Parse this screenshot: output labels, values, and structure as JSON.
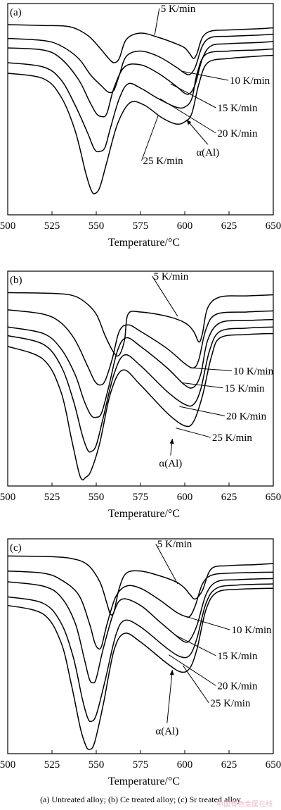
{
  "caption": "(a) Untreated alloy; (b) Ce  treated alloy; (c) Sr treated alloy",
  "watermark": "中国有色金属在线",
  "chart_data": [
    {
      "type": "line",
      "panel_label": "(a)",
      "xlabel": "Temperature/°C",
      "ylabel": "",
      "xlim": [
        500,
        650
      ],
      "xticks": [
        500,
        525,
        550,
        575,
        600,
        625,
        650
      ],
      "yticks_shown": false,
      "legend": "none",
      "series": [
        {
          "name": "5 K/min",
          "x": [
            500,
            520,
            535,
            545,
            552,
            557,
            560,
            563,
            567,
            575,
            585,
            595,
            600,
            603,
            605,
            607,
            610,
            615,
            625,
            640,
            650
          ],
          "y": [
            0.9,
            0.896,
            0.89,
            0.85,
            0.79,
            0.74,
            0.72,
            0.74,
            0.83,
            0.86,
            0.84,
            0.81,
            0.79,
            0.76,
            0.74,
            0.765,
            0.84,
            0.87,
            0.875,
            0.88,
            0.885
          ]
        },
        {
          "name": "10 K/min",
          "x": [
            500,
            520,
            530,
            540,
            547,
            553,
            557,
            560,
            563,
            567,
            575,
            585,
            595,
            600,
            603,
            606,
            610,
            615,
            625,
            640,
            650
          ],
          "y": [
            0.835,
            0.825,
            0.8,
            0.74,
            0.66,
            0.61,
            0.58,
            0.59,
            0.66,
            0.75,
            0.775,
            0.75,
            0.7,
            0.67,
            0.665,
            0.7,
            0.8,
            0.84,
            0.845,
            0.85,
            0.855
          ]
        },
        {
          "name": "15 K/min",
          "x": [
            500,
            520,
            530,
            540,
            546,
            550,
            553,
            556,
            560,
            566,
            575,
            585,
            595,
            600,
            603,
            606,
            610,
            615,
            625,
            640,
            650
          ],
          "y": [
            0.79,
            0.78,
            0.74,
            0.64,
            0.54,
            0.48,
            0.465,
            0.48,
            0.6,
            0.7,
            0.71,
            0.67,
            0.61,
            0.575,
            0.575,
            0.62,
            0.74,
            0.8,
            0.81,
            0.815,
            0.82
          ]
        },
        {
          "name": "20 K/min",
          "x": [
            500,
            520,
            530,
            538,
            545,
            549,
            552,
            555,
            558,
            563,
            568,
            575,
            585,
            595,
            600,
            604,
            607,
            612,
            625,
            640,
            650
          ],
          "y": [
            0.72,
            0.7,
            0.64,
            0.52,
            0.39,
            0.31,
            0.3,
            0.32,
            0.41,
            0.55,
            0.62,
            0.6,
            0.55,
            0.51,
            0.51,
            0.55,
            0.67,
            0.76,
            0.775,
            0.78,
            0.785
          ]
        },
        {
          "name": "25 K/min",
          "x": [
            500,
            520,
            530,
            538,
            544,
            547,
            549,
            552,
            556,
            562,
            569,
            577,
            587,
            595,
            600,
            604,
            608,
            613,
            625,
            640,
            650
          ],
          "y": [
            0.67,
            0.645,
            0.56,
            0.4,
            0.2,
            0.12,
            0.1,
            0.13,
            0.25,
            0.43,
            0.53,
            0.52,
            0.46,
            0.43,
            0.44,
            0.48,
            0.62,
            0.72,
            0.74,
            0.75,
            0.755
          ]
        }
      ],
      "annotations": [
        {
          "text": "5 K/min",
          "x": 588,
          "y": 0.96,
          "target_x": 583,
          "target_y": 0.85
        },
        {
          "text": "10 K/min",
          "x": 627,
          "y": 0.62,
          "target_x": 598,
          "target_y": 0.68
        },
        {
          "text": "15 K/min",
          "x": 620,
          "y": 0.49,
          "target_x": 592,
          "target_y": 0.62
        },
        {
          "text": "20 K/min",
          "x": 620,
          "y": 0.37,
          "target_x": 586,
          "target_y": 0.55
        },
        {
          "text": "25 K/min",
          "x": 578,
          "y": 0.24,
          "target_x": 585,
          "target_y": 0.47
        },
        {
          "text": "α(Al)",
          "x": 613,
          "y": 0.28,
          "target_x": 601,
          "target_y": 0.45
        }
      ]
    },
    {
      "type": "line",
      "panel_label": "(b)",
      "xlabel": "Temperature/°C",
      "ylabel": "",
      "xlim": [
        500,
        650
      ],
      "xticks": [
        500,
        525,
        550,
        575,
        600,
        625,
        650
      ],
      "yticks_shown": false,
      "legend": "none",
      "series": [
        {
          "name": "5 K/min",
          "x": [
            500,
            520,
            535,
            543,
            550,
            555,
            560,
            563,
            566,
            568,
            575,
            590,
            600,
            605,
            608,
            610,
            613,
            620,
            635,
            650
          ],
          "y": [
            0.9,
            0.898,
            0.89,
            0.86,
            0.8,
            0.7,
            0.62,
            0.61,
            0.68,
            0.8,
            0.81,
            0.79,
            0.76,
            0.72,
            0.67,
            0.71,
            0.83,
            0.88,
            0.885,
            0.89
          ]
        },
        {
          "name": "10 K/min",
          "x": [
            500,
            520,
            530,
            538,
            545,
            549,
            552,
            555,
            559,
            563,
            568,
            575,
            590,
            600,
            605,
            608,
            612,
            618,
            635,
            650
          ],
          "y": [
            0.82,
            0.8,
            0.76,
            0.68,
            0.56,
            0.49,
            0.47,
            0.49,
            0.59,
            0.72,
            0.75,
            0.72,
            0.64,
            0.57,
            0.55,
            0.59,
            0.73,
            0.8,
            0.81,
            0.815
          ]
        },
        {
          "name": "15 K/min",
          "x": [
            500,
            520,
            530,
            538,
            543,
            547,
            550,
            553,
            557,
            562,
            567,
            575,
            590,
            600,
            605,
            609,
            613,
            620,
            635,
            650
          ],
          "y": [
            0.74,
            0.71,
            0.64,
            0.52,
            0.4,
            0.33,
            0.32,
            0.34,
            0.46,
            0.63,
            0.69,
            0.65,
            0.55,
            0.47,
            0.46,
            0.52,
            0.68,
            0.76,
            0.77,
            0.775
          ]
        },
        {
          "name": "20 K/min",
          "x": [
            500,
            520,
            530,
            537,
            542,
            545,
            547,
            550,
            554,
            560,
            566,
            575,
            590,
            600,
            605,
            609,
            614,
            620,
            635,
            650
          ],
          "y": [
            0.7,
            0.66,
            0.56,
            0.4,
            0.24,
            0.17,
            0.16,
            0.19,
            0.32,
            0.52,
            0.61,
            0.56,
            0.44,
            0.38,
            0.38,
            0.45,
            0.63,
            0.72,
            0.735,
            0.74
          ]
        },
        {
          "name": "25 K/min",
          "x": [
            500,
            520,
            530,
            536,
            540,
            542,
            544,
            547,
            552,
            558,
            565,
            575,
            590,
            600,
            605,
            610,
            615,
            620,
            635,
            650
          ],
          "y": [
            0.65,
            0.59,
            0.44,
            0.22,
            0.07,
            0.03,
            0.04,
            0.07,
            0.2,
            0.43,
            0.54,
            0.47,
            0.34,
            0.28,
            0.3,
            0.42,
            0.6,
            0.69,
            0.705,
            0.71
          ]
        }
      ],
      "annotations": [
        {
          "text": "5 K/min",
          "x": 584,
          "y": 0.96,
          "target_x": 596,
          "target_y": 0.79
        },
        {
          "text": "10 K/min",
          "x": 629,
          "y": 0.52,
          "target_x": 603,
          "target_y": 0.55
        },
        {
          "text": "15 K/min",
          "x": 624,
          "y": 0.44,
          "target_x": 599,
          "target_y": 0.48
        },
        {
          "text": "20 K/min",
          "x": 625,
          "y": 0.31,
          "target_x": 597,
          "target_y": 0.37
        },
        {
          "text": "25 K/min",
          "x": 617,
          "y": 0.21,
          "target_x": 595,
          "target_y": 0.27
        },
        {
          "text": "α(Al)",
          "x": 592,
          "y": 0.09,
          "target_x": 593,
          "target_y": 0.22
        }
      ]
    },
    {
      "type": "line",
      "panel_label": "(c)",
      "xlabel": "Temperature/°C",
      "ylabel": "",
      "xlim": [
        500,
        650
      ],
      "xticks": [
        500,
        525,
        550,
        575,
        600,
        625,
        650
      ],
      "yticks_shown": false,
      "legend": "none",
      "series": [
        {
          "name": "5 K/min",
          "x": [
            500,
            520,
            535,
            545,
            552,
            556,
            558,
            560,
            563,
            567,
            575,
            585,
            595,
            600,
            603,
            606,
            610,
            615,
            625,
            640,
            650
          ],
          "y": [
            0.92,
            0.918,
            0.91,
            0.88,
            0.8,
            0.7,
            0.65,
            0.66,
            0.77,
            0.84,
            0.85,
            0.83,
            0.8,
            0.77,
            0.74,
            0.72,
            0.76,
            0.86,
            0.875,
            0.88,
            0.885
          ]
        },
        {
          "name": "10 K/min",
          "x": [
            500,
            520,
            530,
            540,
            546,
            549,
            551,
            553,
            556,
            561,
            567,
            575,
            585,
            595,
            600,
            603,
            606,
            610,
            615,
            625,
            650
          ],
          "y": [
            0.85,
            0.84,
            0.81,
            0.74,
            0.61,
            0.52,
            0.49,
            0.5,
            0.6,
            0.73,
            0.78,
            0.77,
            0.72,
            0.66,
            0.64,
            0.64,
            0.69,
            0.79,
            0.83,
            0.84,
            0.845
          ]
        },
        {
          "name": "15 K/min",
          "x": [
            500,
            520,
            530,
            538,
            543,
            546,
            548,
            550,
            554,
            560,
            565,
            575,
            585,
            595,
            600,
            603,
            607,
            612,
            618,
            630,
            650
          ],
          "y": [
            0.8,
            0.78,
            0.73,
            0.61,
            0.45,
            0.35,
            0.33,
            0.35,
            0.49,
            0.66,
            0.72,
            0.69,
            0.62,
            0.55,
            0.52,
            0.53,
            0.6,
            0.74,
            0.8,
            0.81,
            0.815
          ]
        },
        {
          "name": "20 K/min",
          "x": [
            500,
            520,
            530,
            537,
            542,
            545,
            547,
            550,
            555,
            561,
            566,
            575,
            590,
            598,
            603,
            607,
            612,
            618,
            630,
            650
          ],
          "y": [
            0.73,
            0.7,
            0.61,
            0.45,
            0.26,
            0.17,
            0.15,
            0.18,
            0.34,
            0.55,
            0.62,
            0.59,
            0.49,
            0.45,
            0.46,
            0.54,
            0.7,
            0.77,
            0.785,
            0.79
          ]
        },
        {
          "name": "25 K/min",
          "x": [
            500,
            520,
            530,
            536,
            541,
            544,
            546,
            549,
            554,
            560,
            566,
            575,
            590,
            598,
            603,
            607,
            612,
            618,
            630,
            650
          ],
          "y": [
            0.69,
            0.65,
            0.52,
            0.32,
            0.12,
            0.04,
            0.02,
            0.05,
            0.23,
            0.48,
            0.56,
            0.52,
            0.42,
            0.38,
            0.4,
            0.49,
            0.67,
            0.75,
            0.765,
            0.77
          ]
        }
      ],
      "annotations": [
        {
          "text": "5 K/min",
          "x": 586,
          "y": 0.96,
          "target_x": 596,
          "target_y": 0.79
        },
        {
          "text": "10 K/min",
          "x": 628,
          "y": 0.56,
          "target_x": 600,
          "target_y": 0.64
        },
        {
          "text": "15 K/min",
          "x": 620,
          "y": 0.44,
          "target_x": 595,
          "target_y": 0.55
        },
        {
          "text": "20 K/min",
          "x": 620,
          "y": 0.3,
          "target_x": 591,
          "target_y": 0.46
        },
        {
          "text": "25 K/min",
          "x": 616,
          "y": 0.22,
          "target_x": 599,
          "target_y": 0.41
        },
        {
          "text": "α(Al)",
          "x": 590,
          "y": 0.09,
          "target_x": 593,
          "target_y": 0.39
        }
      ]
    }
  ]
}
